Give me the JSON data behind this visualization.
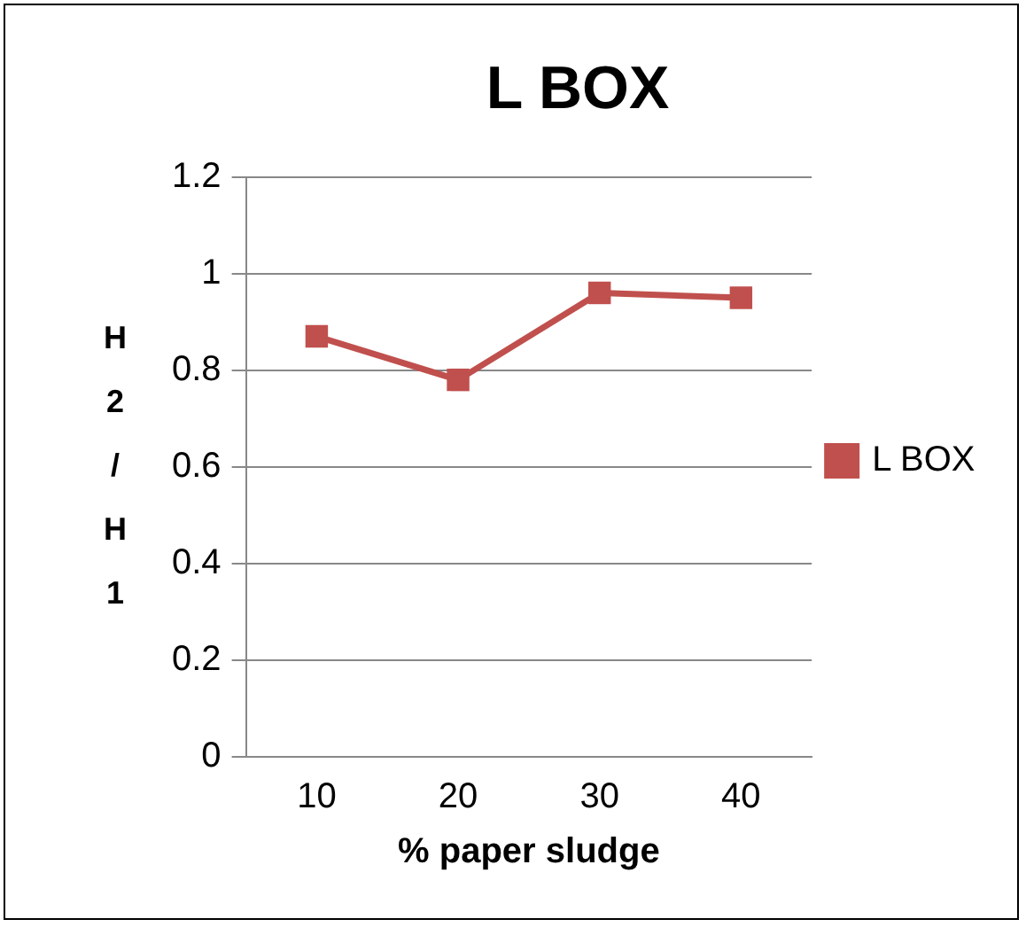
{
  "chart_data": {
    "type": "line",
    "title": "L BOX",
    "xlabel": "% paper sludge",
    "ylabel": "H2/H1",
    "categories": [
      "10",
      "20",
      "30",
      "40"
    ],
    "series": [
      {
        "name": "L BOX",
        "color": "#c0504d",
        "values": [
          0.87,
          0.78,
          0.96,
          0.95
        ]
      }
    ],
    "ylim": [
      0,
      1.2
    ],
    "yticks": [
      0,
      0.2,
      0.4,
      0.6,
      0.8,
      1,
      1.2
    ],
    "grid": "y",
    "legend": "right",
    "marker": "square",
    "line_style": "solid"
  }
}
